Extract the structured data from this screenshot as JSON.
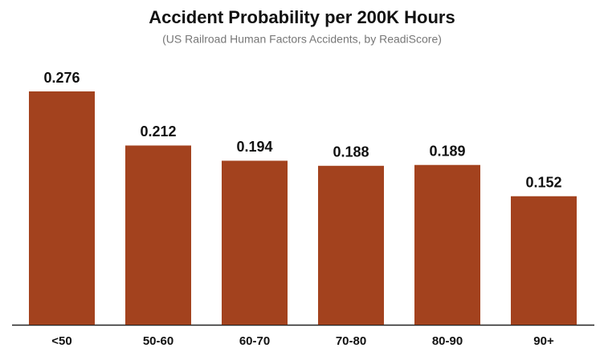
{
  "chart_data": {
    "type": "bar",
    "title": "Accident Probability per 200K Hours",
    "subtitle": "(US Railroad Human Factors Accidents, by ReadiScore)",
    "categories": [
      "<50",
      "50-60",
      "60-70",
      "70-80",
      "80-90",
      "90+"
    ],
    "values": [
      0.276,
      0.212,
      0.194,
      0.188,
      0.189,
      0.152
    ],
    "color": "#a3421e"
  }
}
